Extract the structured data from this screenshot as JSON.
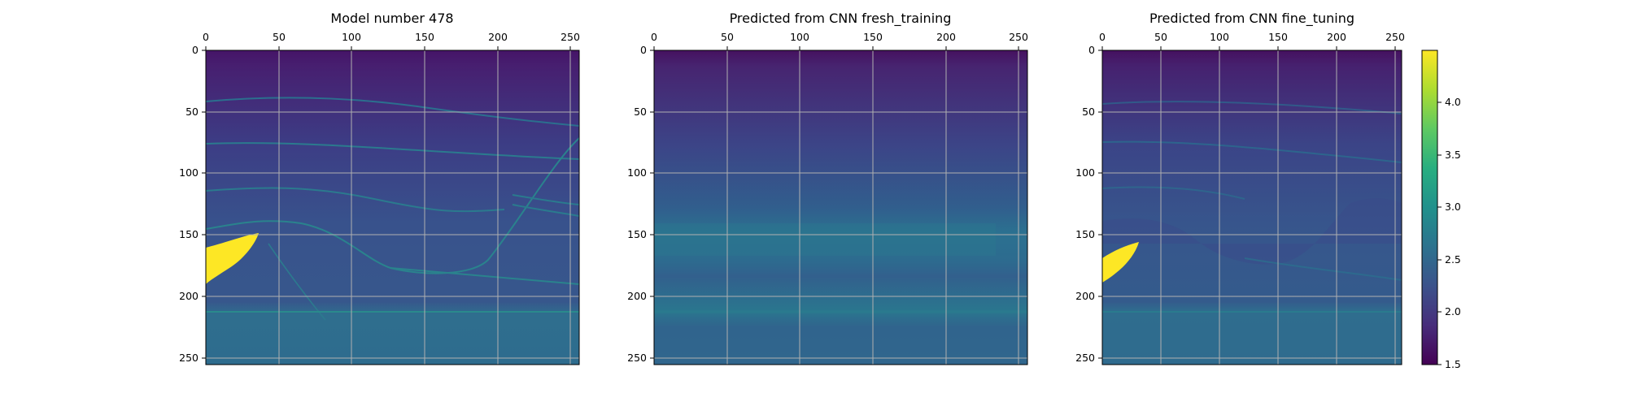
{
  "chart_data": [
    {
      "type": "heatmap",
      "title": "Model number 478",
      "xlim": [
        0,
        256
      ],
      "ylim": [
        256,
        0
      ],
      "x_ticks": [
        "0",
        "50",
        "100",
        "150",
        "200",
        "250"
      ],
      "y_ticks": [
        "0",
        "50",
        "100",
        "150",
        "200",
        "250"
      ],
      "grid": true,
      "xaxis_position": "top",
      "content": "layered velocity model with a high-velocity lens near x=0-35, depth 150-190"
    },
    {
      "type": "heatmap",
      "title": "Predicted from CNN fresh_training",
      "xlim": [
        0,
        256
      ],
      "ylim": [
        256,
        0
      ],
      "x_ticks": [
        "0",
        "50",
        "100",
        "150",
        "200",
        "250"
      ],
      "y_ticks": [
        "0",
        "50",
        "100",
        "150",
        "200",
        "250"
      ],
      "grid": true,
      "xaxis_position": "top",
      "content": "smooth depth-increasing prediction, no lens recovered"
    },
    {
      "type": "heatmap",
      "title": "Predicted from CNN fine_tuning",
      "xlim": [
        0,
        256
      ],
      "ylim": [
        256,
        0
      ],
      "x_ticks": [
        "0",
        "50",
        "100",
        "150",
        "200",
        "250"
      ],
      "y_ticks": [
        "0",
        "50",
        "100",
        "150",
        "200",
        "250"
      ],
      "grid": true,
      "xaxis_position": "top",
      "content": "prediction recovering layers and the high-velocity lens"
    }
  ],
  "colorbar": {
    "colormap": "viridis",
    "range": [
      1.5,
      4.5
    ],
    "ticks": [
      "1.5",
      "2.0",
      "2.5",
      "3.0",
      "3.5",
      "4.0"
    ]
  },
  "colors": {
    "dark": "#440154",
    "mid": "#21918c",
    "bright": "#fde725"
  }
}
